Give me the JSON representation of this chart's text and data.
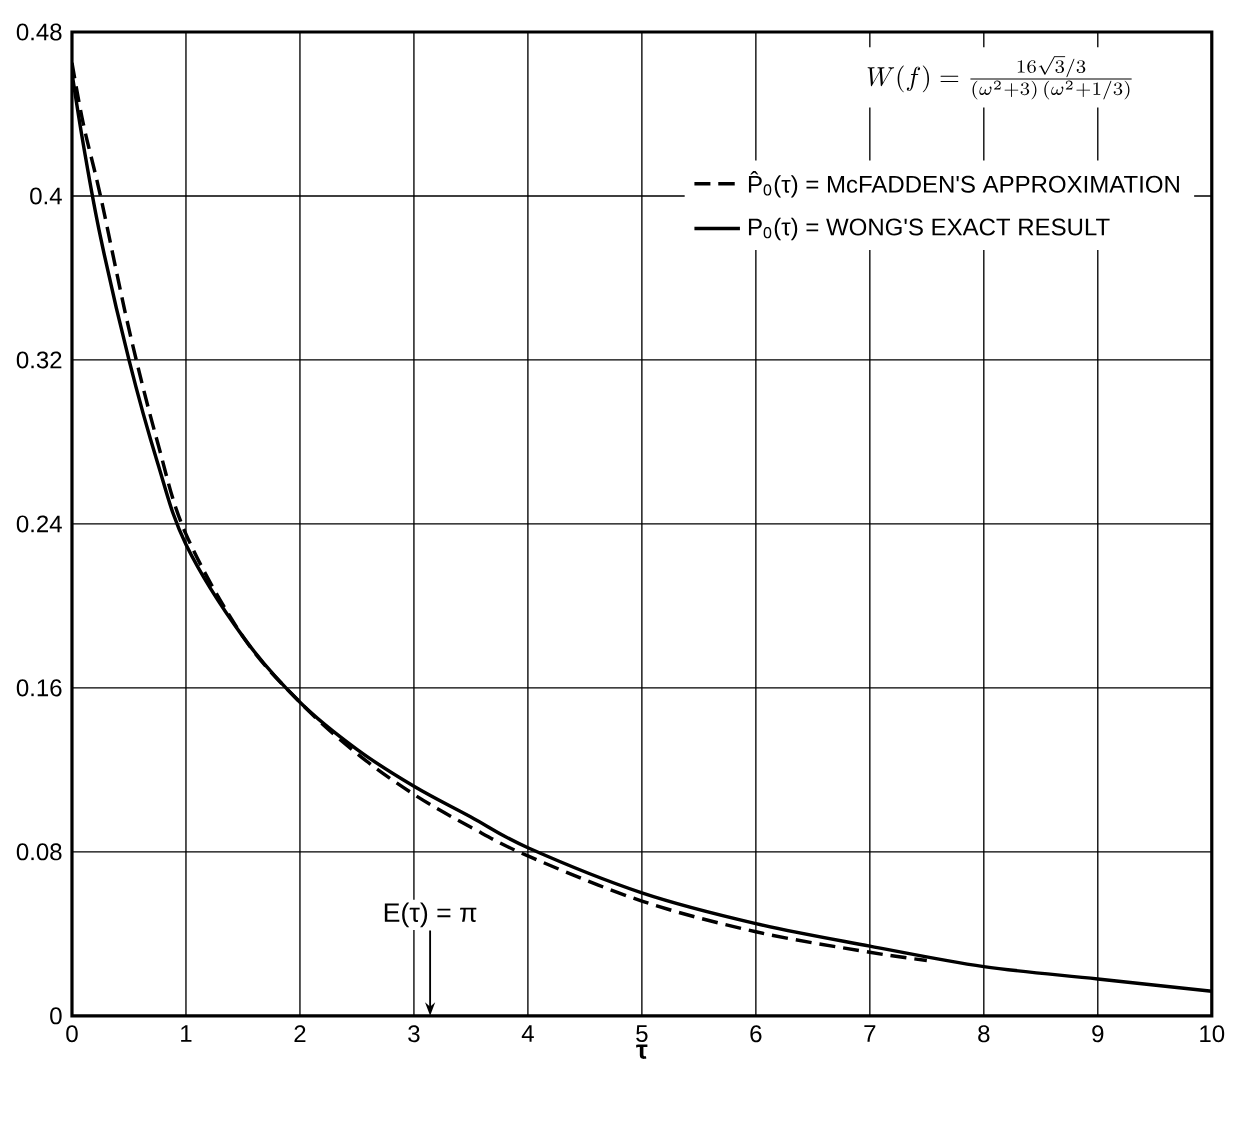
{
  "chart_data": {
    "type": "line",
    "xlabel": "**τ**",
    "annotations": [
      "W(f)=\\frac{16\\sqrt{3}/3}{(\\omega^{2}+3)\\,(\\omega^{2}+1/3)}",
      "E(τ) = π"
    ],
    "series": [
      {
        "name": "P̂$_{0}$(τ) = McFADDEN'S APPROXIMATION",
        "color": "#000000",
        "line_style": "dashed",
        "x": [
          0,
          0.1,
          0.25,
          0.5,
          0.75,
          1,
          1.5,
          2,
          2.5,
          3,
          3.5,
          4,
          5,
          6,
          7,
          7.5
        ],
        "values": [
          0.465,
          0.435,
          0.4,
          0.335,
          0.28,
          0.235,
          0.185,
          0.153,
          0.128,
          0.108,
          0.092,
          0.078,
          0.056,
          0.041,
          0.031,
          0.027
        ]
      },
      {
        "name": "P$_{0}$(τ) = WONG'S EXACT RESULT",
        "color": "#000000",
        "line_style": "solid",
        "x": [
          0,
          0.1,
          0.25,
          0.5,
          0.75,
          1,
          1.5,
          2,
          2.5,
          3,
          3.5,
          4,
          5,
          6,
          7,
          8,
          9,
          10
        ],
        "values": [
          0.46,
          0.425,
          0.38,
          0.32,
          0.27,
          0.23,
          0.185,
          0.153,
          0.13,
          0.112,
          0.097,
          0.082,
          0.06,
          0.045,
          0.034,
          0.024,
          0.018,
          0.012
        ]
      }
    ],
    "xlim": [
      0,
      10
    ],
    "ylim": [
      0,
      0.48
    ],
    "xticks": [
      0,
      1,
      2,
      3,
      4,
      5,
      6,
      7,
      8,
      9,
      10
    ],
    "yticks": [
      0,
      0.08,
      0.16,
      0.24,
      0.32,
      0.4,
      0.48
    ],
    "grid": true,
    "legend": "top right"
  }
}
